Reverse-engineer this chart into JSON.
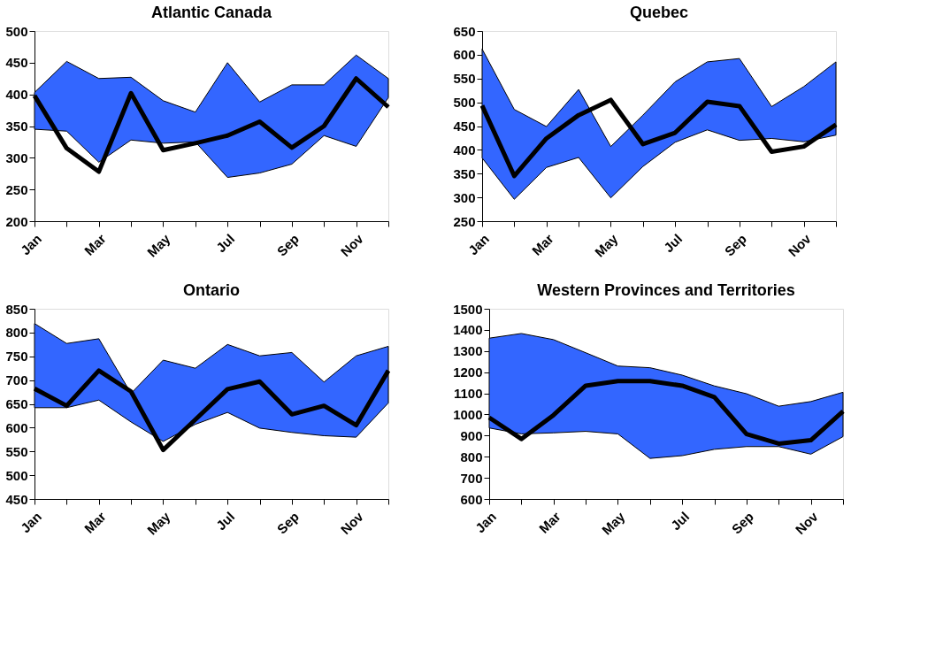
{
  "chart_data": [
    {
      "type": "line",
      "title": "Atlantic Canada",
      "categories": [
        "Jan",
        null,
        "Mar",
        null,
        "May",
        null,
        "Jul",
        null,
        "Sep",
        null,
        "Nov",
        null
      ],
      "ylim": [
        200,
        500
      ],
      "yticks": [
        200,
        250,
        300,
        350,
        400,
        450,
        500
      ],
      "series": [
        {
          "color": "#000000",
          "values": [
            398,
            315,
            278,
            402,
            312,
            323,
            335,
            357,
            316,
            350,
            425,
            380
          ],
          "lower": [
            345,
            342,
            293,
            328,
            323,
            325,
            269,
            276,
            290,
            335,
            318,
            395
          ],
          "upper": [
            403,
            452,
            425,
            427,
            390,
            372,
            450,
            388,
            415,
            415,
            462,
            425
          ]
        }
      ]
    },
    {
      "type": "line",
      "title": "Quebec",
      "categories": [
        "Jan",
        null,
        "Mar",
        null,
        "May",
        null,
        "Jul",
        null,
        "Sep",
        null,
        "Nov",
        null
      ],
      "ylim": [
        250,
        650
      ],
      "yticks": [
        250,
        300,
        350,
        400,
        450,
        500,
        550,
        600,
        650
      ],
      "series": [
        {
          "color": "#000000",
          "values": [
            493,
            345,
            424,
            473,
            505,
            412,
            436,
            501,
            492,
            396,
            407,
            453
          ],
          "lower": [
            383,
            296,
            363,
            384,
            299,
            365,
            416,
            442,
            420,
            424,
            417,
            431
          ],
          "upper": [
            612,
            485,
            449,
            527,
            407,
            473,
            543,
            585,
            592,
            491,
            533,
            585
          ]
        }
      ]
    },
    {
      "type": "line",
      "title": "Ontario",
      "categories": [
        "Jan",
        null,
        "Mar",
        null,
        "May",
        null,
        "Jul",
        null,
        "Sep",
        null,
        "Nov",
        null
      ],
      "ylim": [
        450,
        850
      ],
      "yticks": [
        450,
        500,
        550,
        600,
        650,
        700,
        750,
        800,
        850
      ],
      "series": [
        {
          "color": "#000000",
          "values": [
            682,
            646,
            720,
            676,
            553,
            617,
            681,
            697,
            628,
            646,
            605,
            720
          ],
          "lower": [
            642,
            642,
            658,
            612,
            571,
            607,
            632,
            599,
            590,
            583,
            580,
            652
          ],
          "upper": [
            819,
            777,
            787,
            672,
            742,
            725,
            775,
            751,
            758,
            696,
            751,
            771
          ]
        }
      ]
    },
    {
      "type": "line",
      "title": "Western Provinces and Territories",
      "categories": [
        "Jan",
        null,
        "Mar",
        null,
        "May",
        null,
        "Jul",
        null,
        "Sep",
        null,
        "Nov",
        null
      ],
      "ylim": [
        600,
        1500
      ],
      "yticks": [
        600,
        700,
        800,
        900,
        1000,
        1100,
        1200,
        1300,
        1400,
        1500
      ],
      "series": [
        {
          "color": "#000000",
          "values": [
            985,
            884,
            997,
            1136,
            1158,
            1158,
            1136,
            1082,
            907,
            862,
            878,
            1015
          ],
          "lower": [
            936,
            908,
            913,
            920,
            908,
            792,
            805,
            835,
            848,
            848,
            812,
            895
          ],
          "upper": [
            1361,
            1383,
            1354,
            1292,
            1229,
            1221,
            1186,
            1135,
            1098,
            1039,
            1061,
            1105
          ]
        }
      ]
    }
  ]
}
